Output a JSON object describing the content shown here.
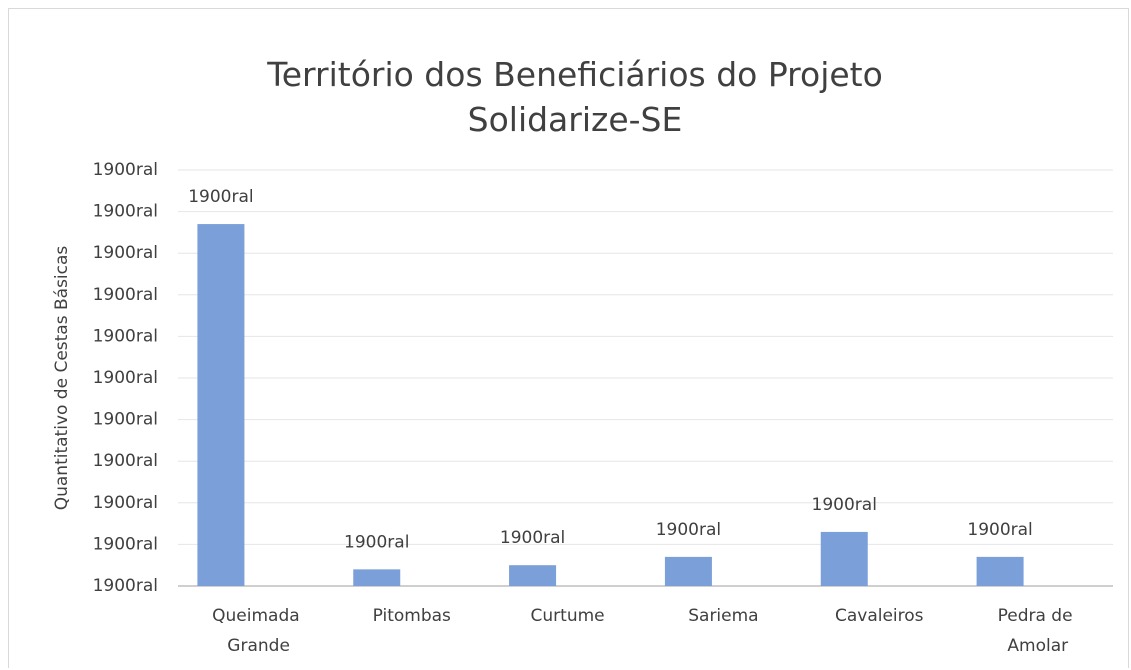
{
  "chart_data": {
    "type": "bar",
    "title": "Território dos Beneficiários do Projeto Solidarize-SE",
    "ylabel": "Quantitativo de Cestas Básicas",
    "categories": [
      "Queimada Grande",
      "Pitombas",
      "Curtume",
      "Sariema",
      "Cavaleiros",
      "Pedra de Amolar"
    ],
    "values": [
      8.7,
      0.4,
      0.5,
      0.7,
      1.3,
      0.7
    ],
    "value_labels": [
      "1900ral",
      "1900ral",
      "1900ral",
      "1900ral",
      "1900ral",
      "1900ral"
    ],
    "color": "#7b9fd8",
    "ylim": [
      0,
      10
    ],
    "yticks": [
      {
        "value": 0,
        "label": "1900ral"
      },
      {
        "value": 1,
        "label": "1900ral"
      },
      {
        "value": 2,
        "label": "1900ral"
      },
      {
        "value": 3,
        "label": "1900ral"
      },
      {
        "value": 4,
        "label": "1900ral"
      },
      {
        "value": 5,
        "label": "1900ral"
      },
      {
        "value": 6,
        "label": "1900ral"
      },
      {
        "value": 7,
        "label": "1900ral"
      },
      {
        "value": 8,
        "label": "1900ral"
      },
      {
        "value": 9,
        "label": "1900ral"
      },
      {
        "value": 10,
        "label": "1900ral"
      }
    ],
    "grid": true
  }
}
